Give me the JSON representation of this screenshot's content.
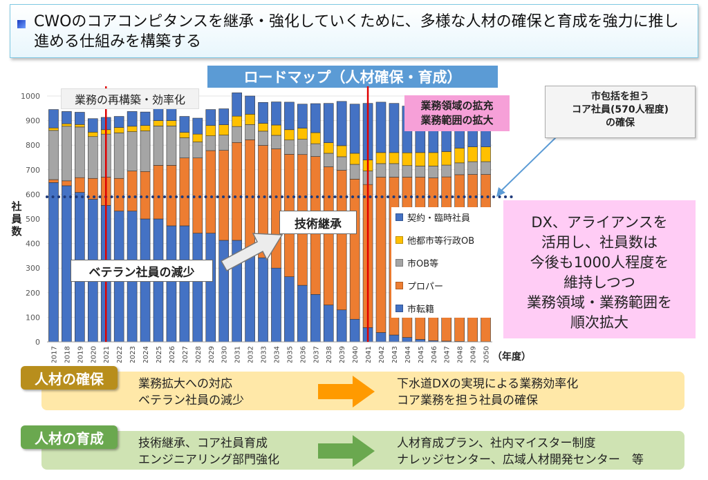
{
  "header": {
    "text": "CWOのコアコンピタンスを継承・強化していくために、多様な人材の確保と育成を強力に推し進める仕組みを構築する"
  },
  "roadmap_title": "ロードマップ（人材確保・育成）",
  "labels": {
    "reorg": "業務の再構築・効率化",
    "expand_line1": "業務領域の拡充",
    "expand_line2": "業務範囲の拡大",
    "veteran": "ベテラン社員の減少",
    "tech": "技術継承",
    "ylabel": "社員数",
    "xunit": "（年度）"
  },
  "core_box": {
    "line1": "市包括を担う",
    "line2": "コア社員(570人程度)",
    "line3": "の確保"
  },
  "dx_box": {
    "line1": "DX、アライアンスを",
    "line2": "活用し、社員数は",
    "line3": "今後も1000人程度を",
    "line4": "維持しつつ",
    "line5": "業務領域・業務範囲を",
    "line6": "順次拡大"
  },
  "panels": {
    "acquire": {
      "tag": "人材の確保",
      "left1": "業務拡大への対応",
      "left2": "ベテラン社員の減少",
      "right1": "下水道DXの実現による業務効率化",
      "right2": "コア業務を担う社員の確保"
    },
    "develop": {
      "tag": "人材の育成",
      "left1": "技術継承、コア社員育成",
      "left2": "エンジニアリング部門強化",
      "right1": "人材育成プラン、社内マイスター制度",
      "right2": "ナレッジセンター、広域人材開発センター　等"
    }
  },
  "colors": {
    "transfer": "#4472c4",
    "proper": "#ed7d31",
    "cityob": "#a5a5a5",
    "otherob": "#ffc000",
    "contract": "#4472c4",
    "redline": "#e00000",
    "dotline": "#1f3a7a"
  },
  "chart_data": {
    "type": "bar",
    "stacked": true,
    "categories": [
      "2017",
      "2018",
      "2019",
      "2020",
      "2021",
      "2022",
      "2023",
      "2024",
      "2025",
      "2026",
      "2027",
      "2028",
      "2029",
      "2030",
      "2031",
      "2032",
      "2033",
      "2034",
      "2035",
      "2036",
      "2037",
      "2038",
      "2039",
      "2040",
      "2041",
      "2042",
      "2043",
      "2044",
      "2045",
      "2046",
      "2047",
      "2048",
      "2049",
      "2050"
    ],
    "ylim": [
      0,
      1000
    ],
    "yticks": [
      0,
      100,
      200,
      300,
      400,
      500,
      600,
      700,
      800,
      900,
      1000
    ],
    "legend": [
      "契約・臨時社員",
      "他都市等行政OB",
      "市OB等",
      "プロパー",
      "市転籍"
    ],
    "series": [
      {
        "name": "市転籍",
        "values": [
          648,
          635,
          608,
          580,
          555,
          532,
          532,
          500,
          500,
          472,
          472,
          442,
          442,
          413,
          413,
          370,
          342,
          300,
          265,
          230,
          193,
          150,
          130,
          92,
          58,
          38,
          28,
          18,
          10,
          5,
          3,
          2,
          1,
          1
        ]
      },
      {
        "name": "プロパー",
        "values": [
          12,
          20,
          60,
          85,
          115,
          133,
          163,
          193,
          218,
          246,
          276,
          306,
          336,
          366,
          398,
          452,
          457,
          485,
          498,
          532,
          561,
          562,
          568,
          570,
          582,
          632,
          642,
          652,
          660,
          662,
          668,
          678,
          680,
          680
        ]
      },
      {
        "name": "市OB等",
        "values": [
          200,
          222,
          206,
          170,
          175,
          185,
          160,
          165,
          160,
          160,
          82,
          65,
          60,
          62,
          65,
          62,
          58,
          55,
          58,
          62,
          52,
          55,
          55,
          60,
          55,
          55,
          55,
          47,
          45,
          48,
          48,
          48,
          52,
          52
        ]
      },
      {
        "name": "他都市等行政OB",
        "values": [
          10,
          10,
          10,
          18,
          18,
          22,
          22,
          22,
          22,
          22,
          22,
          32,
          42,
          42,
          42,
          42,
          32,
          42,
          42,
          45,
          45,
          43,
          45,
          45,
          45,
          45,
          45,
          52,
          55,
          55,
          55,
          60,
          60,
          60
        ]
      },
      {
        "name": "契約・臨時社員",
        "values": [
          75,
          50,
          50,
          55,
          50,
          45,
          60,
          55,
          55,
          55,
          65,
          65,
          65,
          65,
          95,
          74,
          85,
          94,
          112,
          98,
          118,
          160,
          180,
          200,
          230,
          205,
          200,
          190,
          195,
          200,
          200,
          185,
          170,
          170
        ]
      }
    ],
    "reference_line": 590,
    "markers": [
      "2021",
      "2041"
    ]
  }
}
